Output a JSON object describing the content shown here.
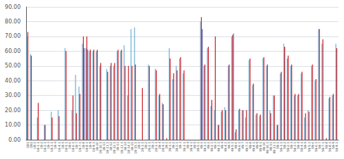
{
  "chart_data": {
    "type": "bar",
    "categories": [
      "QB1",
      "QB2",
      "1B-1",
      "1B-1.1",
      "1B-2",
      "1B-2.1",
      "1B-3",
      "1B-3.1",
      "1B-4",
      "1B-4.1",
      "1B-5",
      "1B-5.1",
      "1B-6",
      "1B-6.1",
      "1B-7",
      "1B-7.1",
      "1B-8",
      "1B-8.1",
      "1B-9",
      "1B-9.1",
      "1B-10",
      "1B-10.1",
      "1B-11",
      "1B-11.1",
      "1B-12",
      "1B-12.1",
      "1B-13",
      "1B-13.1",
      "1B-14",
      "1B-14.1",
      "1B-15",
      "1B-15.1",
      "2B-1",
      "2B-1.1",
      "2B-2",
      "2B-2.1",
      "2B-3",
      "2B-3.1",
      "2B-4",
      "2B-4.1",
      "3B-1",
      "3B-1.1",
      "3B-2",
      "3B-2.1",
      "3B-3",
      "3B-3.1",
      "3B-4",
      "3B-4.1",
      "3B-5",
      "3B-5.1",
      "4B-1",
      "4B-1.1",
      "4B-2",
      "4B-2.1",
      "4B-3",
      "4B-3.1",
      "4B-4",
      "4B-4.1",
      "4B-5",
      "4B-5.1",
      "4B-6",
      "4B-6.1",
      "4B-7",
      "4B-7.1",
      "4B-8",
      "4B-8.1",
      "4B-9",
      "4B-9.1",
      "4B-10",
      "4B-10.1",
      "4B-11",
      "4B-11.1",
      "5B-1",
      "5B-1.1",
      "5B-2",
      "5B-2.1",
      "5B-3",
      "5B-3.1",
      "5B-4",
      "5B-4.1",
      "5B-5",
      "5B-5.1",
      "5B-6",
      "5B-6.1",
      "5B-7",
      "5B-7.1",
      "5B-8",
      "5B-8.1",
      "5B-9",
      "5B-9.1"
    ],
    "series": [
      {
        "color": "#6baed6",
        "values": [
          70,
          58,
          0,
          15,
          0,
          10,
          0,
          19,
          0,
          20,
          0,
          62,
          0,
          20,
          44,
          36,
          65,
          62,
          60,
          60,
          60,
          50,
          0,
          48,
          50,
          50,
          60,
          60,
          64,
          30,
          75,
          76,
          0,
          0,
          0,
          51,
          0,
          48,
          30,
          25,
          0,
          62,
          41,
          50,
          55,
          45,
          0,
          0,
          0,
          0,
          80,
          50,
          62,
          23,
          20,
          10,
          19,
          22,
          50,
          70,
          5,
          20,
          20,
          15,
          54,
          37,
          17,
          16,
          55,
          50,
          20,
          30,
          10,
          45,
          65,
          55,
          50,
          30,
          30,
          45,
          15,
          20,
          50,
          40,
          75,
          65,
          0,
          28,
          30,
          65
        ]
      },
      {
        "color": "#cb181d",
        "values": [
          73,
          57,
          0,
          25,
          0,
          10,
          0,
          15,
          0,
          16,
          0,
          60,
          0,
          30,
          18,
          31,
          70,
          70,
          61,
          61,
          61,
          52,
          0,
          46,
          52,
          52,
          61,
          61,
          50,
          50,
          50,
          51,
          0,
          35,
          0,
          50,
          0,
          47,
          31,
          24,
          1,
          55,
          45,
          47,
          56,
          47,
          0,
          0,
          0,
          0,
          83,
          51,
          63,
          27,
          70,
          10,
          20,
          20,
          51,
          71,
          7,
          21,
          20,
          20,
          55,
          38,
          18,
          17,
          56,
          51,
          18,
          30,
          10,
          46,
          63,
          57,
          51,
          31,
          31,
          46,
          18,
          19,
          51,
          41,
          75,
          68,
          1,
          29,
          31,
          62
        ]
      },
      {
        "color": "#756bb1",
        "values": [
          0,
          0,
          0,
          0,
          0,
          0,
          0,
          0,
          0,
          0,
          0,
          0,
          0,
          0,
          0,
          0,
          62,
          61,
          0,
          0,
          0,
          0,
          0,
          0,
          0,
          0,
          0,
          0,
          0,
          0,
          0,
          0,
          0,
          0,
          0,
          0,
          0,
          0,
          0,
          0,
          0,
          0,
          0,
          0,
          0,
          0,
          0,
          0,
          0,
          0,
          75,
          0,
          0,
          0,
          0,
          0,
          0,
          0,
          0,
          72,
          0,
          0,
          0,
          0,
          0,
          0,
          0,
          0,
          0,
          0,
          0,
          0,
          0,
          0,
          0,
          0,
          0,
          0,
          0,
          0,
          0,
          0,
          0,
          0,
          0,
          0,
          0,
          0,
          0,
          0
        ]
      }
    ],
    "ylim": [
      0,
      90
    ],
    "yticks": [
      {
        "value": 0,
        "label": "0.00"
      },
      {
        "value": 10,
        "label": "10.00"
      },
      {
        "value": 20,
        "label": "20.00"
      },
      {
        "value": 30,
        "label": "30.00"
      },
      {
        "value": 40,
        "label": "40.00"
      },
      {
        "value": 50,
        "label": "50.00"
      },
      {
        "value": 60,
        "label": "60.00"
      },
      {
        "value": 70,
        "label": "70.00"
      },
      {
        "value": 80,
        "label": "80.00"
      },
      {
        "value": 90,
        "label": "90.00"
      }
    ],
    "grid": true
  }
}
